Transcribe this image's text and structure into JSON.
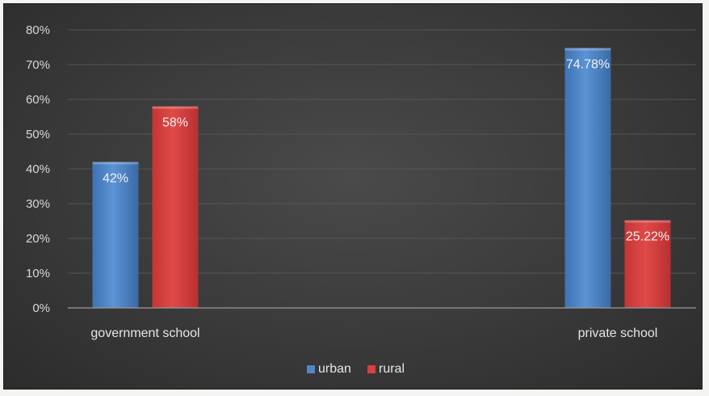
{
  "chart_data": {
    "type": "bar",
    "categories": [
      "government school",
      "private school"
    ],
    "series": [
      {
        "name": "urban",
        "values": [
          42,
          74.78
        ],
        "labels": [
          "42%",
          "74.78%"
        ],
        "color": "#4f86c6"
      },
      {
        "name": "rural",
        "values": [
          58,
          25.22
        ],
        "labels": [
          "58%",
          "25.22%"
        ],
        "color": "#d9403f"
      }
    ],
    "ylim": [
      0,
      80
    ],
    "yticks": [
      "0%",
      "10%",
      "20%",
      "30%",
      "40%",
      "50%",
      "60%",
      "70%",
      "80%"
    ],
    "grid": true,
    "legend_position": "bottom",
    "background": "#3a3a3a"
  }
}
